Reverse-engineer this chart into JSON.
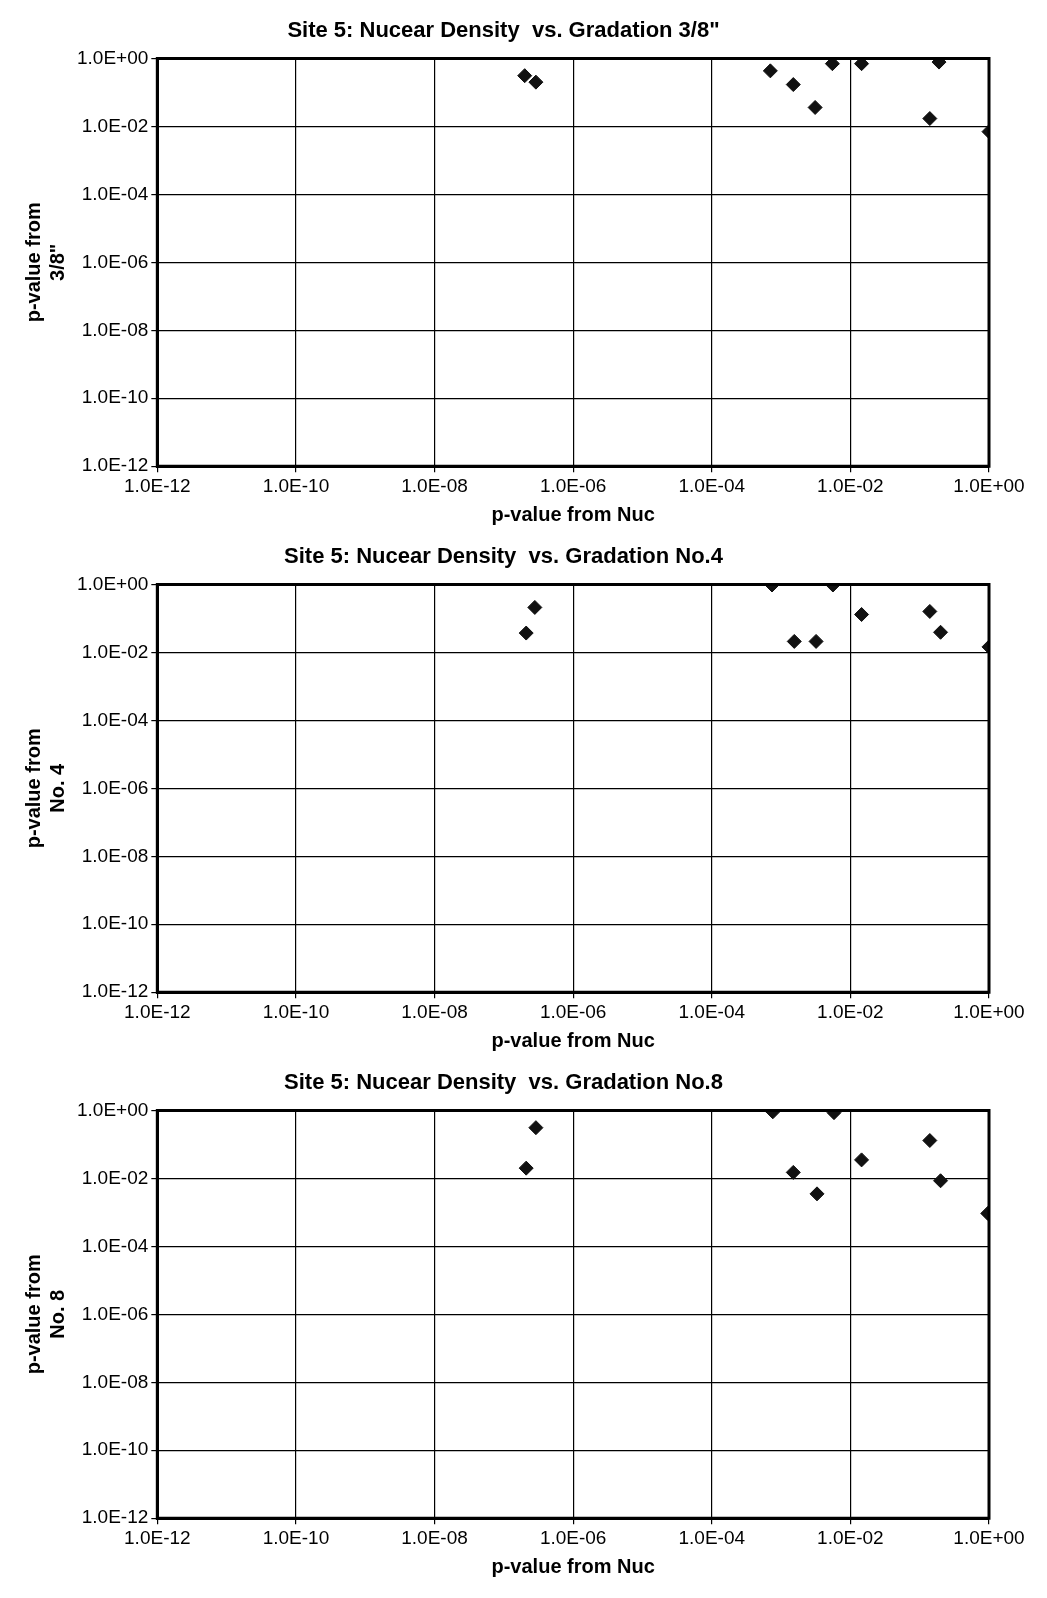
{
  "chart_data": [
    {
      "type": "scatter",
      "title": "Site 5: Nucear Density  vs. Gradation 3/8\"",
      "xlabel": "p-value from Nuc",
      "ylabel": "p-value from 3/8\"",
      "log": "xy",
      "grid": true,
      "legend": false,
      "marker": "diamond",
      "xlim": [
        1e-12,
        1
      ],
      "ylim": [
        1e-12,
        1
      ],
      "xticks": [
        {
          "value": 1e-12,
          "label": "1.0E-12"
        },
        {
          "value": 1e-10,
          "label": "1.0E-10"
        },
        {
          "value": 1e-08,
          "label": "1.0E-08"
        },
        {
          "value": 1e-06,
          "label": "1.0E-06"
        },
        {
          "value": 0.0001,
          "label": "1.0E-04"
        },
        {
          "value": 0.01,
          "label": "1.0E-02"
        },
        {
          "value": 1,
          "label": "1.0E+00"
        }
      ],
      "yticks": [
        {
          "value": 1e-12,
          "label": "1.0E-12"
        },
        {
          "value": 1e-10,
          "label": "1.0E-10"
        },
        {
          "value": 1e-08,
          "label": "1.0E-08"
        },
        {
          "value": 1e-06,
          "label": "1.0E-06"
        },
        {
          "value": 0.0001,
          "label": "1.0E-04"
        },
        {
          "value": 0.01,
          "label": "1.0E-02"
        },
        {
          "value": 1,
          "label": "1.0E+00"
        }
      ],
      "series": [
        {
          "color": "#111111",
          "x": [
            2e-07,
            2.9e-07,
            0.0007,
            0.0015,
            0.0031,
            0.0055,
            0.0145,
            0.19,
            0.14,
            1.0
          ],
          "values": [
            0.31,
            0.2,
            0.43,
            0.17,
            0.036,
            0.7,
            0.7,
            0.78,
            0.017,
            0.007
          ]
        }
      ]
    },
    {
      "type": "scatter",
      "title": "Site 5: Nucear Density  vs. Gradation No.4",
      "xlabel": "p-value from Nuc",
      "ylabel": "p-value from No. 4",
      "log": "xy",
      "grid": true,
      "legend": false,
      "marker": "diamond",
      "xlim": [
        1e-12,
        1
      ],
      "ylim": [
        1e-12,
        1
      ],
      "xticks": [
        {
          "value": 1e-12,
          "label": "1.0E-12"
        },
        {
          "value": 1e-10,
          "label": "1.0E-10"
        },
        {
          "value": 1e-08,
          "label": "1.0E-08"
        },
        {
          "value": 1e-06,
          "label": "1.0E-06"
        },
        {
          "value": 0.0001,
          "label": "1.0E-04"
        },
        {
          "value": 0.01,
          "label": "1.0E-02"
        },
        {
          "value": 1,
          "label": "1.0E+00"
        }
      ],
      "yticks": [
        {
          "value": 1e-12,
          "label": "1.0E-12"
        },
        {
          "value": 1e-10,
          "label": "1.0E-10"
        },
        {
          "value": 1e-08,
          "label": "1.0E-08"
        },
        {
          "value": 1e-06,
          "label": "1.0E-06"
        },
        {
          "value": 0.0001,
          "label": "1.0E-04"
        },
        {
          "value": 0.01,
          "label": "1.0E-02"
        },
        {
          "value": 1,
          "label": "1.0E+00"
        }
      ],
      "series": [
        {
          "color": "#111111",
          "x": [
            2.8e-07,
            2.1e-07,
            0.00074,
            0.0056,
            0.00155,
            0.0032,
            0.0145,
            0.14,
            0.2,
            1.0
          ],
          "values": [
            0.21,
            0.037,
            0.96,
            0.96,
            0.021,
            0.021,
            0.13,
            0.16,
            0.039,
            0.0145
          ]
        }
      ]
    },
    {
      "type": "scatter",
      "title": "Site 5: Nucear Density  vs. Gradation No.8",
      "xlabel": "p-value from Nuc",
      "ylabel": "p-value from No. 8",
      "log": "xy",
      "grid": true,
      "legend": false,
      "marker": "diamond",
      "xlim": [
        1e-12,
        1
      ],
      "ylim": [
        1e-12,
        1
      ],
      "xticks": [
        {
          "value": 1e-12,
          "label": "1.0E-12"
        },
        {
          "value": 1e-10,
          "label": "1.0E-10"
        },
        {
          "value": 1e-08,
          "label": "1.0E-08"
        },
        {
          "value": 1e-06,
          "label": "1.0E-06"
        },
        {
          "value": 0.0001,
          "label": "1.0E-04"
        },
        {
          "value": 0.01,
          "label": "1.0E-02"
        },
        {
          "value": 1,
          "label": "1.0E+00"
        }
      ],
      "yticks": [
        {
          "value": 1e-12,
          "label": "1.0E-12"
        },
        {
          "value": 1e-10,
          "label": "1.0E-10"
        },
        {
          "value": 1e-08,
          "label": "1.0E-08"
        },
        {
          "value": 1e-06,
          "label": "1.0E-06"
        },
        {
          "value": 0.0001,
          "label": "1.0E-04"
        },
        {
          "value": 0.01,
          "label": "1.0E-02"
        },
        {
          "value": 1,
          "label": "1.0E+00"
        }
      ],
      "series": [
        {
          "color": "#111111",
          "x": [
            2.9e-07,
            2.1e-07,
            0.00076,
            0.0058,
            0.0015,
            0.0033,
            0.0145,
            0.14,
            0.2,
            0.96
          ],
          "values": [
            0.31,
            0.02,
            0.91,
            0.86,
            0.015,
            0.0035,
            0.035,
            0.13,
            0.0085,
            0.00093
          ]
        }
      ]
    }
  ]
}
